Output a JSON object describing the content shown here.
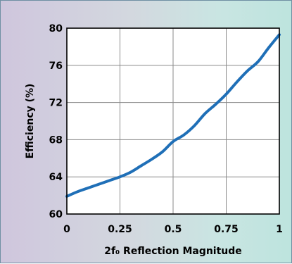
{
  "chart_data": {
    "type": "line",
    "title": "",
    "xlabel": "2f₀ Reflection Magnitude",
    "ylabel": "Efficiency (%)",
    "xlim": [
      0,
      1
    ],
    "ylim": [
      60,
      80
    ],
    "xticks": [
      "0",
      "0.25",
      "0.5",
      "0.75",
      "1"
    ],
    "yticks": [
      "60",
      "64",
      "68",
      "72",
      "76",
      "80"
    ],
    "grid": true,
    "series": [
      {
        "color": "#1f6fb7",
        "x": [
          0,
          0.05,
          0.1,
          0.15,
          0.2,
          0.25,
          0.3,
          0.35,
          0.4,
          0.45,
          0.5,
          0.55,
          0.6,
          0.65,
          0.7,
          0.75,
          0.8,
          0.85,
          0.9,
          0.95,
          1.0
        ],
        "y": [
          61.9,
          62.4,
          62.8,
          63.2,
          63.6,
          64.0,
          64.5,
          65.2,
          65.9,
          66.7,
          67.8,
          68.5,
          69.5,
          70.8,
          71.8,
          72.9,
          74.2,
          75.4,
          76.4,
          77.9,
          79.3
        ]
      }
    ]
  }
}
